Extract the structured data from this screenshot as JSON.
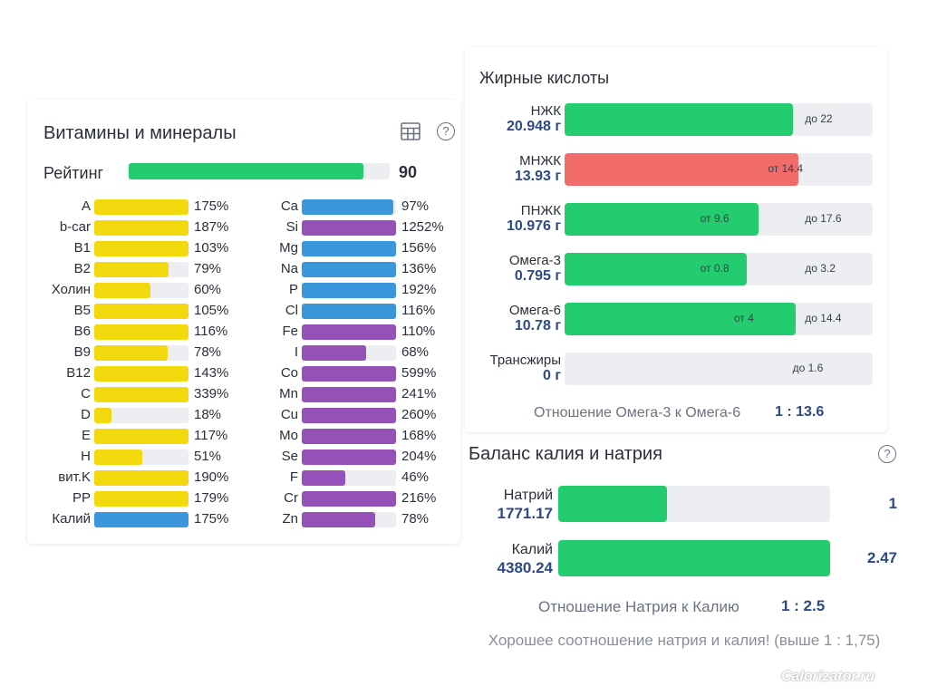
{
  "vitamins_panel": {
    "title": "Витамины и минералы",
    "table_icon": "table-grid-icon",
    "help_icon": "question-circle-icon",
    "help_glyph": "?",
    "rating": {
      "label": "Рейтинг",
      "value": "90",
      "fill_percent": 90
    }
  },
  "colors": {
    "yellow": "#f2d90d",
    "blue": "#3b97db",
    "purple": "#9651b8",
    "green": "#22cc6f",
    "red": "#f26b6b",
    "track": "#eceef2"
  },
  "vitamins": [
    {
      "label": "A",
      "value": "175%",
      "fill": 100,
      "color": "yellow"
    },
    {
      "label": "b-car",
      "value": "187%",
      "fill": 100,
      "color": "yellow"
    },
    {
      "label": "B1",
      "value": "103%",
      "fill": 100,
      "color": "yellow"
    },
    {
      "label": "B2",
      "value": "79%",
      "fill": 79,
      "color": "yellow"
    },
    {
      "label": "Холин",
      "value": "60%",
      "fill": 60,
      "color": "yellow"
    },
    {
      "label": "B5",
      "value": "105%",
      "fill": 100,
      "color": "yellow"
    },
    {
      "label": "B6",
      "value": "116%",
      "fill": 100,
      "color": "yellow"
    },
    {
      "label": "B9",
      "value": "78%",
      "fill": 78,
      "color": "yellow"
    },
    {
      "label": "B12",
      "value": "143%",
      "fill": 100,
      "color": "yellow"
    },
    {
      "label": "C",
      "value": "339%",
      "fill": 100,
      "color": "yellow"
    },
    {
      "label": "D",
      "value": "18%",
      "fill": 18,
      "color": "yellow"
    },
    {
      "label": "E",
      "value": "117%",
      "fill": 100,
      "color": "yellow"
    },
    {
      "label": "H",
      "value": "51%",
      "fill": 51,
      "color": "yellow"
    },
    {
      "label": "вит.K",
      "value": "190%",
      "fill": 100,
      "color": "yellow"
    },
    {
      "label": "PP",
      "value": "179%",
      "fill": 100,
      "color": "yellow"
    },
    {
      "label": "Калий",
      "value": "175%",
      "fill": 100,
      "color": "blue"
    }
  ],
  "minerals": [
    {
      "label": "Ca",
      "value": "97%",
      "fill": 97,
      "color": "blue"
    },
    {
      "label": "Si",
      "value": "1252%",
      "fill": 100,
      "color": "purple"
    },
    {
      "label": "Mg",
      "value": "156%",
      "fill": 100,
      "color": "blue"
    },
    {
      "label": "Na",
      "value": "136%",
      "fill": 100,
      "color": "blue"
    },
    {
      "label": "P",
      "value": "192%",
      "fill": 100,
      "color": "blue"
    },
    {
      "label": "Cl",
      "value": "116%",
      "fill": 100,
      "color": "blue"
    },
    {
      "label": "Fe",
      "value": "110%",
      "fill": 100,
      "color": "purple"
    },
    {
      "label": "I",
      "value": "68%",
      "fill": 68,
      "color": "purple"
    },
    {
      "label": "Co",
      "value": "599%",
      "fill": 100,
      "color": "purple"
    },
    {
      "label": "Mn",
      "value": "241%",
      "fill": 100,
      "color": "purple"
    },
    {
      "label": "Cu",
      "value": "260%",
      "fill": 100,
      "color": "purple"
    },
    {
      "label": "Mo",
      "value": "168%",
      "fill": 100,
      "color": "purple"
    },
    {
      "label": "Se",
      "value": "204%",
      "fill": 100,
      "color": "purple"
    },
    {
      "label": "F",
      "value": "46%",
      "fill": 46,
      "color": "purple"
    },
    {
      "label": "Cr",
      "value": "216%",
      "fill": 100,
      "color": "purple"
    },
    {
      "label": "Zn",
      "value": "78%",
      "fill": 78,
      "color": "purple"
    }
  ],
  "fatty_acids": {
    "title": "Жирные кислоты",
    "items": [
      {
        "name": "НЖК",
        "amount": "20.948 г",
        "color": "green",
        "fill": 74,
        "marks": [
          {
            "text": "до 22",
            "pos": 78
          }
        ]
      },
      {
        "name": "МНЖК",
        "amount": "13.93 г",
        "color": "red",
        "fill": 76,
        "marks": [
          {
            "text": "от 14.4",
            "pos": 66
          }
        ]
      },
      {
        "name": "ПНЖК",
        "amount": "10.976 г",
        "color": "green",
        "fill": 63,
        "marks": [
          {
            "text": "от 9.6",
            "pos": 44
          },
          {
            "text": "до 17.6",
            "pos": 78
          }
        ]
      },
      {
        "name": "Омега-3",
        "amount": "0.795 г",
        "color": "green",
        "fill": 59,
        "marks": [
          {
            "text": "от 0.8",
            "pos": 44
          },
          {
            "text": "до 3.2",
            "pos": 78
          }
        ]
      },
      {
        "name": "Омега-6",
        "amount": "10.78 г",
        "color": "green",
        "fill": 75,
        "marks": [
          {
            "text": "от 4",
            "pos": 55
          },
          {
            "text": "до 14.4",
            "pos": 78
          }
        ]
      },
      {
        "name": "Трансжиры",
        "amount": "0 г",
        "color": "green",
        "fill": 0,
        "marks": [
          {
            "text": "до 1.6",
            "pos": 74
          }
        ]
      }
    ],
    "ratio_label": "Отношение Омега-3 к Омега-6",
    "ratio_value": "1 : 13.6"
  },
  "balance": {
    "title": "Баланс калия и натрия",
    "help_icon": "question-circle-icon",
    "help_glyph": "?",
    "items": [
      {
        "name": "Натрий",
        "amount": "1771.17",
        "value": "1",
        "fill": 40
      },
      {
        "name": "Калий",
        "amount": "4380.24",
        "value": "2.47",
        "fill": 100
      }
    ],
    "ratio_label": "Отношение Натрия к Калию",
    "ratio_value": "1 : 2.5",
    "note": "Хорошее соотношение натрия и калия! (выше 1 : 1,75)"
  },
  "watermark": "Calorizator.ru"
}
